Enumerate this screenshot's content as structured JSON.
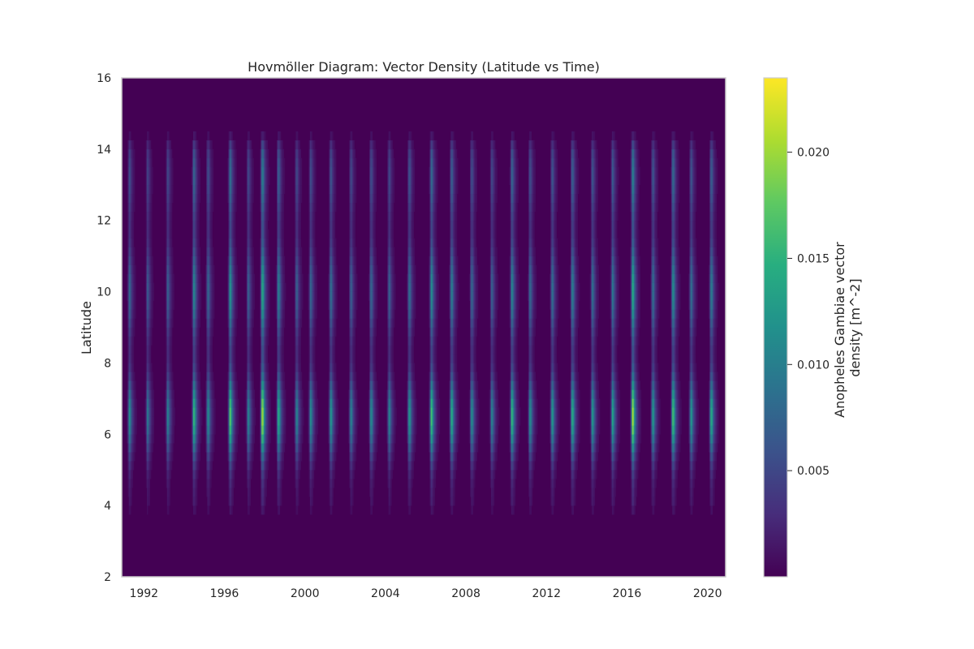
{
  "chart_data": {
    "type": "heatmap",
    "title": "Hovmöller Diagram: Vector Density (Latitude vs Time)",
    "xlabel": "",
    "ylabel": "Latitude",
    "xlim": [
      1990.9,
      2020.9
    ],
    "ylim": [
      2,
      16
    ],
    "x_ticks": [
      1992,
      1996,
      2000,
      2004,
      2008,
      2012,
      2016,
      2020
    ],
    "x_tick_labels": [
      "1992",
      "1996",
      "2000",
      "2004",
      "2008",
      "2012",
      "2016",
      "2020"
    ],
    "y_ticks": [
      2,
      4,
      6,
      8,
      10,
      12,
      14,
      16
    ],
    "y_tick_labels": [
      "2",
      "4",
      "6",
      "8",
      "10",
      "12",
      "14",
      "16"
    ],
    "grid": false,
    "colormap": "viridis",
    "colorbar": {
      "label_lines": [
        "Anopheles Gambiae vector",
        "density [m^-2]"
      ],
      "range": [
        0,
        0.0235
      ],
      "ticks": [
        0.005,
        0.01,
        0.015,
        0.02
      ],
      "tick_labels": [
        "0.005",
        "0.010",
        "0.015",
        "0.020"
      ]
    },
    "data_extent_latitude": [
      3.5,
      14.6
    ],
    "peak_density": 0.0235,
    "description_of_pattern": "",
    "seasonal_peaks": [
      1991.3,
      1992.2,
      1993.2,
      1994.5,
      1995.2,
      1996.3,
      1997.2,
      1997.9,
      1998.7,
      1999.6,
      2000.3,
      2001.3,
      2002.3,
      2003.3,
      2004.2,
      2005.2,
      2006.3,
      2007.3,
      2008.3,
      2009.3,
      2010.3,
      2011.2,
      2012.3,
      2013.3,
      2014.3,
      2015.3,
      2016.3,
      2017.3,
      2018.3,
      2019.2,
      2020.2
    ],
    "seasonal_peak_strength": [
      0.55,
      0.45,
      0.5,
      0.75,
      0.55,
      0.85,
      0.5,
      1.0,
      0.7,
      0.5,
      0.55,
      0.6,
      0.5,
      0.55,
      0.5,
      0.6,
      0.8,
      0.7,
      0.55,
      0.5,
      0.75,
      0.55,
      0.6,
      0.7,
      0.6,
      0.65,
      1.0,
      0.6,
      0.8,
      0.6,
      0.7
    ]
  }
}
